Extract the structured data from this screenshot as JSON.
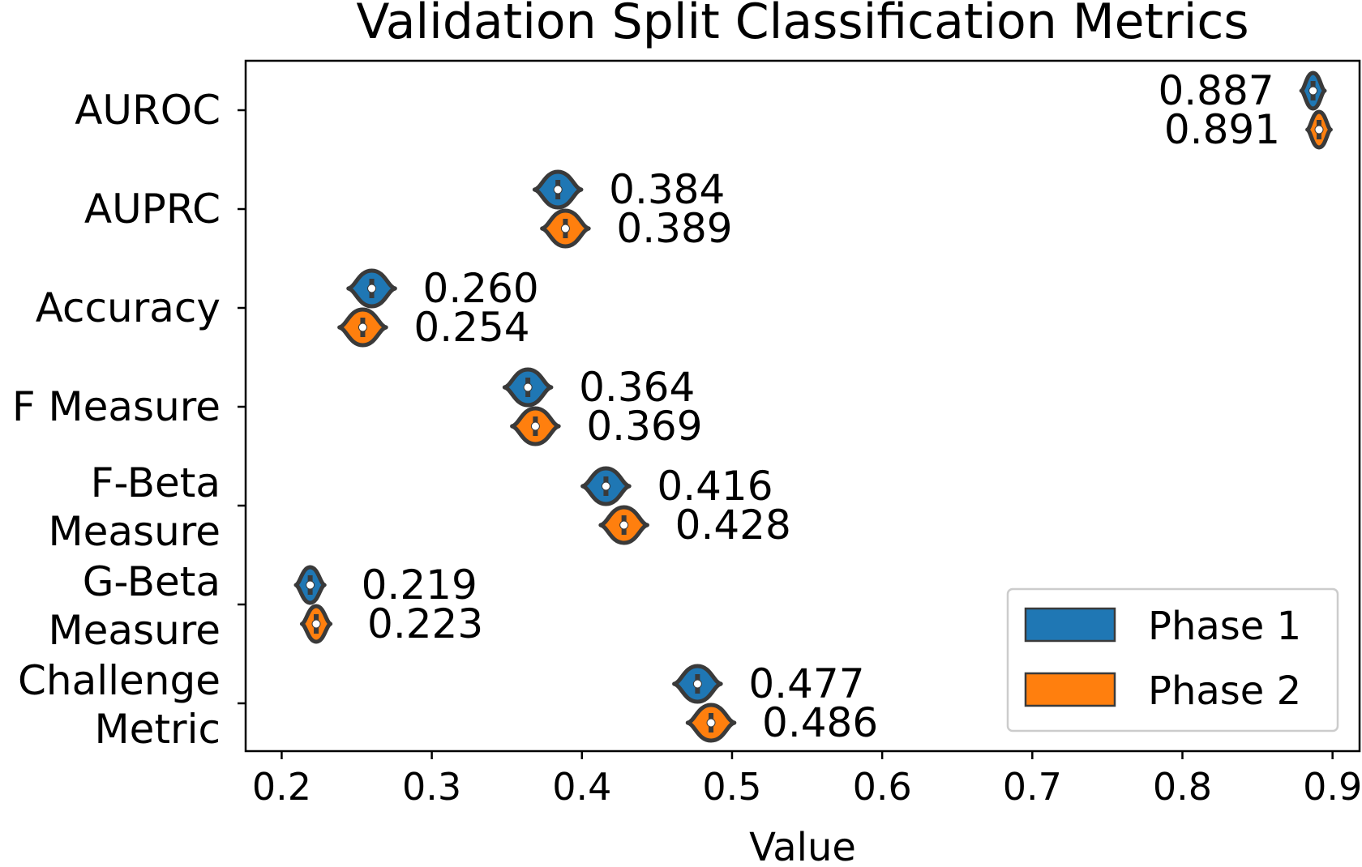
{
  "chart_data": {
    "type": "violin",
    "orientation": "horizontal",
    "title": "Validation Split Classification Metrics",
    "xlabel": "Value",
    "ylabel": "",
    "xlim": [
      0.176,
      0.918
    ],
    "xticks": [
      "0.2",
      "0.3",
      "0.4",
      "0.5",
      "0.6",
      "0.7",
      "0.8",
      "0.9"
    ],
    "categories": [
      [
        "AUROC"
      ],
      [
        "AUPRC"
      ],
      [
        "Accuracy"
      ],
      [
        "F Measure"
      ],
      [
        "F-Beta",
        "Measure"
      ],
      [
        "G-Beta",
        "Measure"
      ],
      [
        "Challenge",
        "Metric"
      ]
    ],
    "series": [
      {
        "name": "Phase 1",
        "color": "#1f77b4",
        "values": [
          0.887,
          0.384,
          0.26,
          0.364,
          0.416,
          0.219,
          0.477
        ],
        "labels": [
          "0.887",
          "0.384",
          "0.260",
          "0.364",
          "0.416",
          "0.219",
          "0.477"
        ]
      },
      {
        "name": "Phase 2",
        "color": "#ff7f0e",
        "values": [
          0.891,
          0.389,
          0.254,
          0.369,
          0.428,
          0.223,
          0.486
        ],
        "labels": [
          "0.891",
          "0.389",
          "0.254",
          "0.369",
          "0.428",
          "0.223",
          "0.486"
        ]
      }
    ],
    "legend": {
      "position": "bottom-right"
    },
    "grid": false
  }
}
